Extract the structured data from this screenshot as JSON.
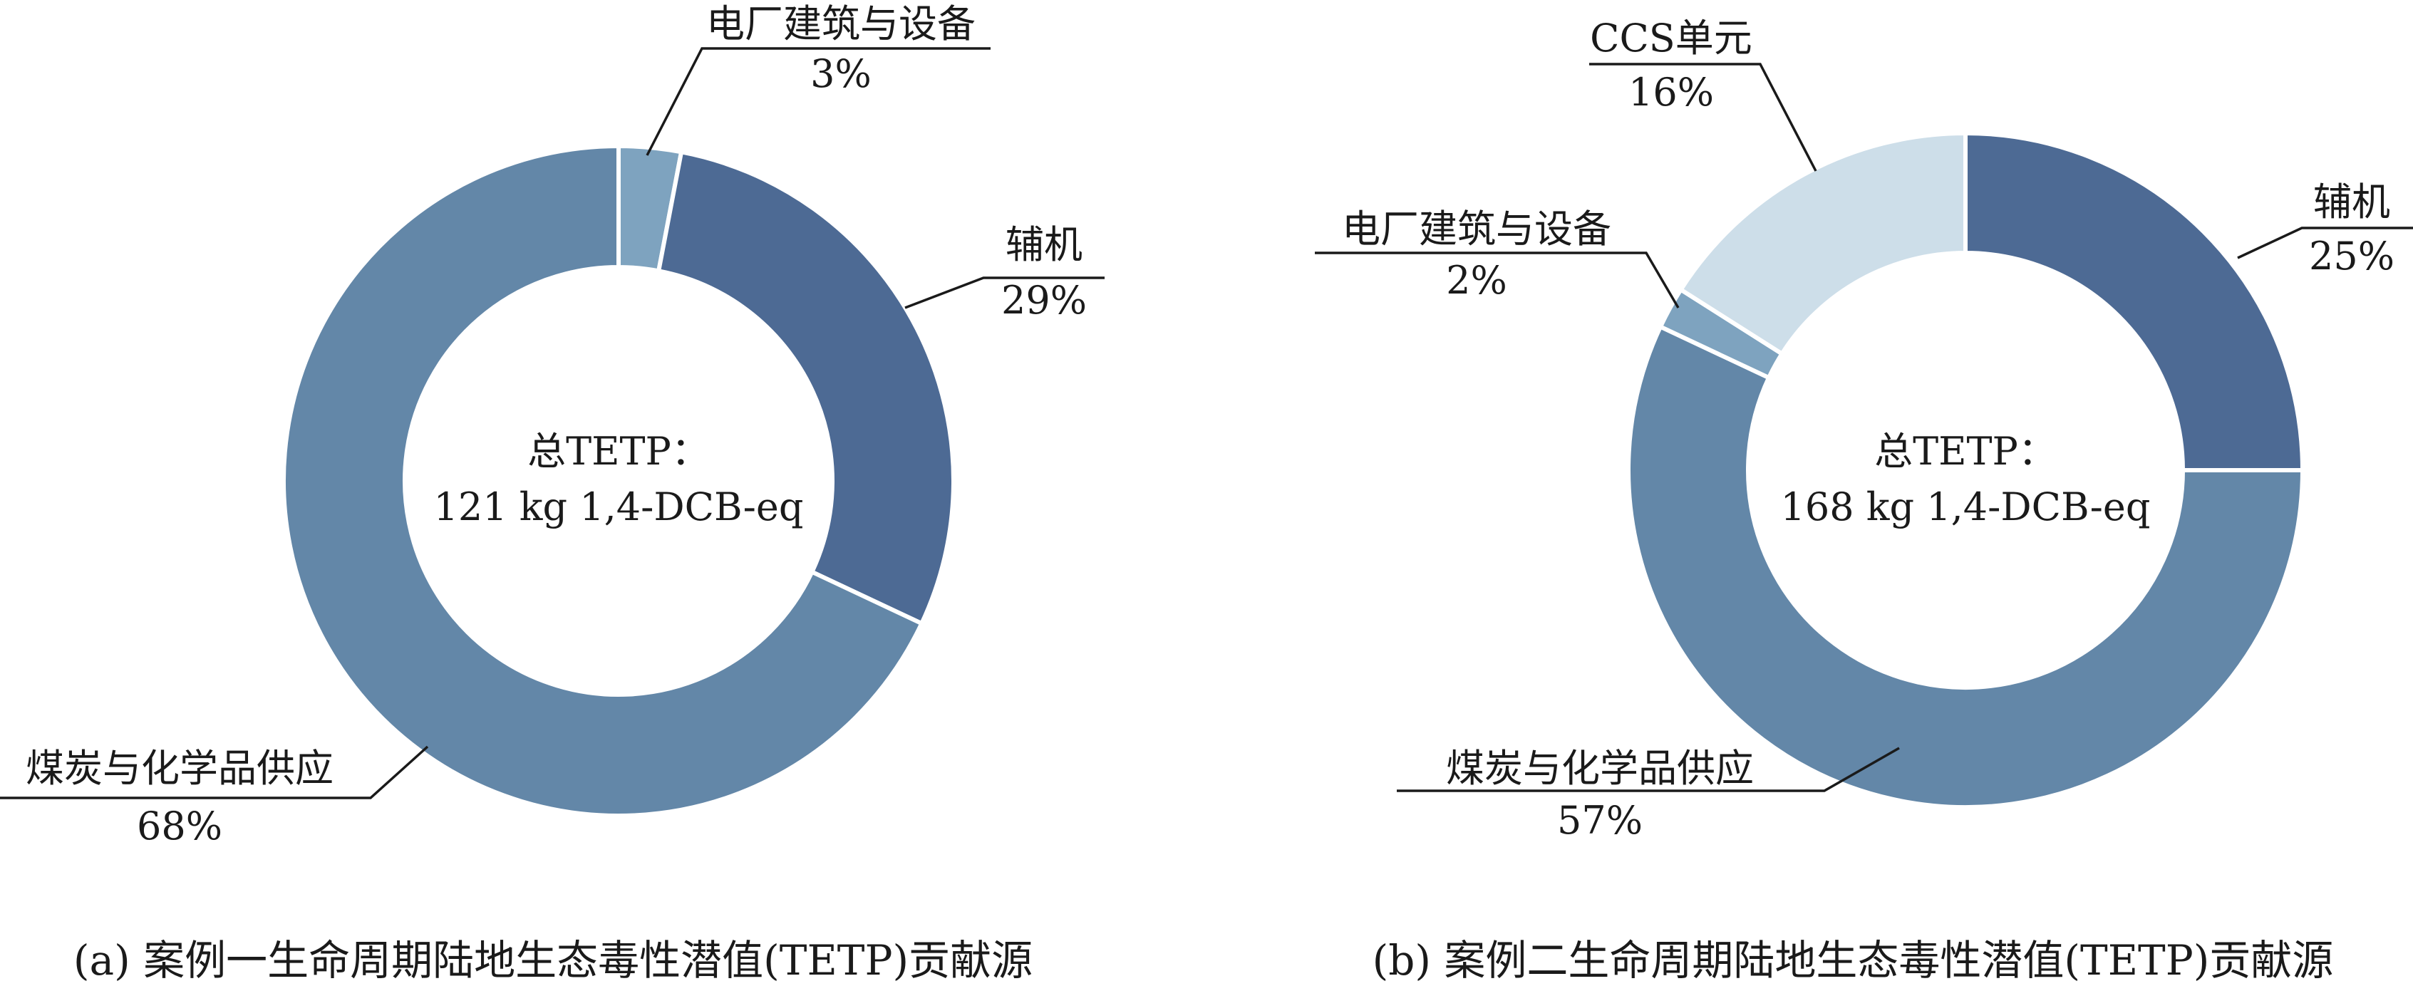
{
  "chart_data": [
    {
      "type": "pie",
      "variant": "donut",
      "caption": "(a) 案例一生命周期陆地生态毒性潜值(TETP)贡献源",
      "center_text": [
        "总TETP：",
        "121 kg 1,4-DCB-eq"
      ],
      "slices": [
        {
          "label": "电厂建筑与设备",
          "value": 3,
          "value_text": "3%",
          "color": "#7ea3bf"
        },
        {
          "label": "辅机",
          "value": 29,
          "value_text": "29%",
          "color": "#4d6a94"
        },
        {
          "label": "煤炭与化学品供应",
          "value": 68,
          "value_text": "68%",
          "color": "#6387a8"
        }
      ]
    },
    {
      "type": "pie",
      "variant": "donut",
      "caption": "(b) 案例二生命周期陆地生态毒性潜值(TETP)贡献源",
      "center_text": [
        "总TETP：",
        "168 kg 1,4-DCB-eq"
      ],
      "slices": [
        {
          "label": "辅机",
          "value": 25,
          "value_text": "25%",
          "color": "#4d6a94"
        },
        {
          "label": "煤炭与化学品供应",
          "value": 57,
          "value_text": "57%",
          "color": "#6387a8"
        },
        {
          "label": "电厂建筑与设备",
          "value": 2,
          "value_text": "2%",
          "color": "#7ea3bf"
        },
        {
          "label": "CCS单元",
          "value": 16,
          "value_text": "16%",
          "color": "#cddee9"
        }
      ]
    }
  ]
}
